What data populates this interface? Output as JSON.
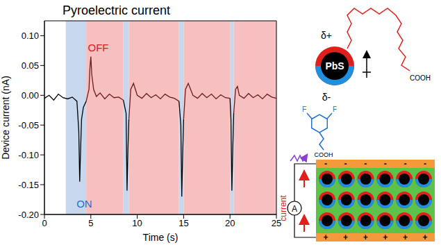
{
  "chart_data": {
    "type": "line",
    "title": "Pyroelectric current",
    "x_label": "Time (s)",
    "y_label": "Device current (nA)",
    "x": [
      0,
      0.5,
      1,
      1.5,
      2,
      2.5,
      3,
      3.5,
      3.7,
      3.8,
      3.9,
      4.0,
      4.2,
      4.5,
      4.8,
      4.9,
      5.0,
      5.1,
      5.3,
      5.6,
      6,
      6.5,
      7,
      7.5,
      8,
      8.5,
      8.8,
      8.9,
      9.0,
      9.1,
      9.3,
      9.6,
      10,
      10.5,
      11,
      11.5,
      12,
      12.5,
      13,
      13.5,
      14,
      14.5,
      14.7,
      14.8,
      14.9,
      15.0,
      15.2,
      15.5,
      16,
      16.5,
      17,
      17.5,
      18,
      18.5,
      19,
      19.5,
      20,
      20.1,
      20.2,
      20.3,
      20.4,
      20.6,
      20.8,
      21,
      21.5,
      22,
      22.5,
      23,
      23.5,
      24,
      24.5,
      25
    ],
    "series": [
      {
        "color": "#000000",
        "values": [
          -0.005,
          0.0,
          -0.008,
          0.002,
          -0.004,
          -0.006,
          -0.003,
          -0.01,
          -0.06,
          -0.145,
          -0.09,
          -0.04,
          -0.02,
          -0.01,
          null,
          null,
          null,
          null,
          null,
          null,
          null,
          null,
          null,
          null,
          null,
          -0.008,
          -0.03,
          -0.16,
          -0.09,
          -0.04,
          null,
          null,
          null,
          null,
          null,
          null,
          null,
          null,
          null,
          null,
          null,
          -0.01,
          -0.05,
          -0.17,
          -0.1,
          -0.04,
          null,
          null,
          null,
          null,
          null,
          null,
          null,
          null,
          null,
          null,
          -0.005,
          -0.04,
          -0.16,
          -0.09,
          -0.03,
          null,
          null,
          null,
          null,
          null,
          null,
          null,
          null,
          null,
          null,
          null
        ]
      },
      {
        "color": "#6b1a1a",
        "values": [
          null,
          null,
          null,
          null,
          null,
          null,
          null,
          null,
          null,
          null,
          null,
          null,
          null,
          -0.01,
          0.01,
          0.045,
          0.065,
          0.035,
          0.01,
          -0.002,
          0.004,
          -0.006,
          0.002,
          -0.004,
          -0.003,
          -0.008,
          null,
          null,
          null,
          -0.04,
          0.01,
          0.02,
          0.0,
          -0.005,
          0.003,
          -0.004,
          0.001,
          -0.006,
          0.002,
          -0.003,
          -0.005,
          -0.01,
          null,
          null,
          null,
          -0.04,
          0.01,
          0.02,
          0.0,
          -0.005,
          0.003,
          -0.004,
          0.002,
          -0.006,
          0.001,
          -0.004,
          -0.005,
          null,
          null,
          null,
          -0.03,
          0.01,
          0.015,
          0.0,
          -0.005,
          0.003,
          -0.004,
          0.001,
          -0.006,
          0.002,
          -0.003,
          -0.005
        ]
      }
    ],
    "xlim": [
      0,
      25
    ],
    "xticks": [
      0,
      5,
      10,
      15,
      20,
      25
    ],
    "ylim": [
      -0.2,
      0.125
    ],
    "yticks": [
      {
        "value": -0.2,
        "label": "-0.20"
      },
      {
        "value": -0.15,
        "label": "-0.15"
      },
      {
        "value": -0.1,
        "label": "-0.10"
      },
      {
        "value": -0.05,
        "label": "-0.05"
      },
      {
        "value": 0,
        "label": "0.00"
      },
      {
        "value": 0.05,
        "label": "0.05"
      },
      {
        "value": 0.1,
        "label": "0.10"
      }
    ],
    "grid": false,
    "spans": [
      {
        "start": 2.3,
        "end": 4.5,
        "color": "#c6d7ee"
      },
      {
        "start": 4.5,
        "end": 8.5,
        "color": "#f6c0c0"
      },
      {
        "start": 8.5,
        "end": 9.1,
        "color": "#c6d7ee"
      },
      {
        "start": 9.1,
        "end": 14.5,
        "color": "#f6c0c0"
      },
      {
        "start": 14.5,
        "end": 15.0,
        "color": "#c6d7ee"
      },
      {
        "start": 15.0,
        "end": 20.0,
        "color": "#f6c0c0"
      },
      {
        "start": 20.0,
        "end": 20.4,
        "color": "#c6d7ee"
      },
      {
        "start": 20.4,
        "end": 25,
        "color": "#f6c0c0"
      }
    ],
    "annotations": [
      {
        "text": "ON",
        "x": 4.3,
        "y": -0.182,
        "color": "#1f6fd1"
      },
      {
        "text": "OFF",
        "x": 5.8,
        "y": 0.08,
        "color": "#d11f1f"
      }
    ]
  },
  "diagram": {
    "particle_label": "PbS",
    "top_charge": "δ+",
    "bottom_charge": "δ-",
    "top_ligand_group": "COOH",
    "bottom_ligand_group": "COOH",
    "substituents": [
      "F",
      "F"
    ],
    "meter": "A",
    "current_label": "current",
    "top_electrode_signs": [
      "-",
      "-",
      "-",
      "-",
      "-",
      "-"
    ],
    "bottom_electrode_signs": [
      "+",
      "+",
      "+",
      "+",
      "+",
      "+"
    ]
  }
}
